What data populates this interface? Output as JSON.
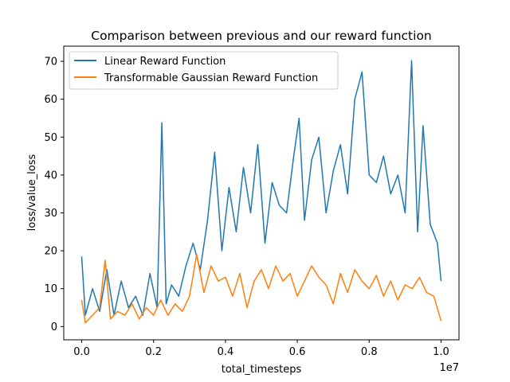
{
  "chart_data": {
    "type": "line",
    "title": "Comparison between previous and our reward function",
    "xlabel": "total_timesteps",
    "ylabel": "loss/value_loss",
    "x_offset_label": "1e7",
    "xlim": [
      -0.05,
      1.05
    ],
    "ylim": [
      -3.5,
      74
    ],
    "x_ticks": [
      0.0,
      0.2,
      0.4,
      0.6,
      0.8,
      1.0
    ],
    "x_tick_labels": [
      "0.0",
      "0.2",
      "0.4",
      "0.6",
      "0.8",
      "1.0"
    ],
    "y_ticks": [
      0,
      10,
      20,
      30,
      40,
      50,
      60,
      70
    ],
    "y_tick_labels": [
      "0",
      "10",
      "20",
      "30",
      "40",
      "50",
      "60",
      "70"
    ],
    "grid": false,
    "legend_position": "top-left",
    "series": [
      {
        "name": "Linear Reward Function",
        "color": "#1f77b4",
        "x": [
          0.0,
          0.01,
          0.03,
          0.05,
          0.07,
          0.09,
          0.11,
          0.13,
          0.15,
          0.17,
          0.19,
          0.21,
          0.223,
          0.235,
          0.25,
          0.27,
          0.29,
          0.31,
          0.33,
          0.35,
          0.37,
          0.39,
          0.41,
          0.43,
          0.45,
          0.47,
          0.49,
          0.51,
          0.53,
          0.55,
          0.57,
          0.59,
          0.605,
          0.62,
          0.64,
          0.66,
          0.68,
          0.7,
          0.72,
          0.74,
          0.76,
          0.78,
          0.8,
          0.82,
          0.84,
          0.86,
          0.88,
          0.9,
          0.918,
          0.935,
          0.95,
          0.97,
          0.99,
          1.0
        ],
        "values": [
          18.5,
          3.0,
          10.0,
          4.0,
          15.0,
          3.0,
          12.0,
          5.0,
          8.0,
          3.0,
          14.0,
          5.0,
          53.8,
          6.0,
          11.0,
          8.0,
          16.0,
          22.0,
          15.0,
          28.0,
          46.0,
          20.0,
          36.7,
          25.0,
          42.0,
          30.0,
          48.0,
          22.0,
          38.0,
          32.0,
          30.0,
          45.0,
          55.0,
          28.0,
          44.0,
          50.0,
          30.0,
          41.0,
          48.0,
          35.0,
          60.0,
          67.2,
          40.0,
          38.0,
          45.0,
          35.0,
          40.0,
          30.0,
          70.2,
          25.0,
          53.0,
          27.0,
          22.0,
          12.0
        ]
      },
      {
        "name": "Transformable Gaussian Reward Function",
        "color": "#ff7f0e",
        "x": [
          0.0,
          0.01,
          0.03,
          0.05,
          0.065,
          0.08,
          0.1,
          0.12,
          0.14,
          0.16,
          0.18,
          0.2,
          0.22,
          0.24,
          0.26,
          0.28,
          0.3,
          0.32,
          0.34,
          0.36,
          0.38,
          0.4,
          0.42,
          0.44,
          0.46,
          0.48,
          0.5,
          0.52,
          0.54,
          0.56,
          0.58,
          0.6,
          0.62,
          0.64,
          0.66,
          0.68,
          0.7,
          0.72,
          0.74,
          0.76,
          0.78,
          0.8,
          0.82,
          0.84,
          0.86,
          0.88,
          0.9,
          0.92,
          0.94,
          0.96,
          0.98,
          1.0
        ],
        "values": [
          7.0,
          1.0,
          3.0,
          5.0,
          17.5,
          2.0,
          4.0,
          3.0,
          6.0,
          2.0,
          5.0,
          3.0,
          7.0,
          3.0,
          6.0,
          4.0,
          8.0,
          19.0,
          9.0,
          16.0,
          12.0,
          13.0,
          8.0,
          14.0,
          5.0,
          12.0,
          15.0,
          10.0,
          16.0,
          12.0,
          14.0,
          8.0,
          12.0,
          16.0,
          13.0,
          11.0,
          6.0,
          14.0,
          9.0,
          15.0,
          12.0,
          10.0,
          13.5,
          8.0,
          12.0,
          7.0,
          11.0,
          10.0,
          13.0,
          9.0,
          8.0,
          1.5
        ]
      }
    ]
  }
}
